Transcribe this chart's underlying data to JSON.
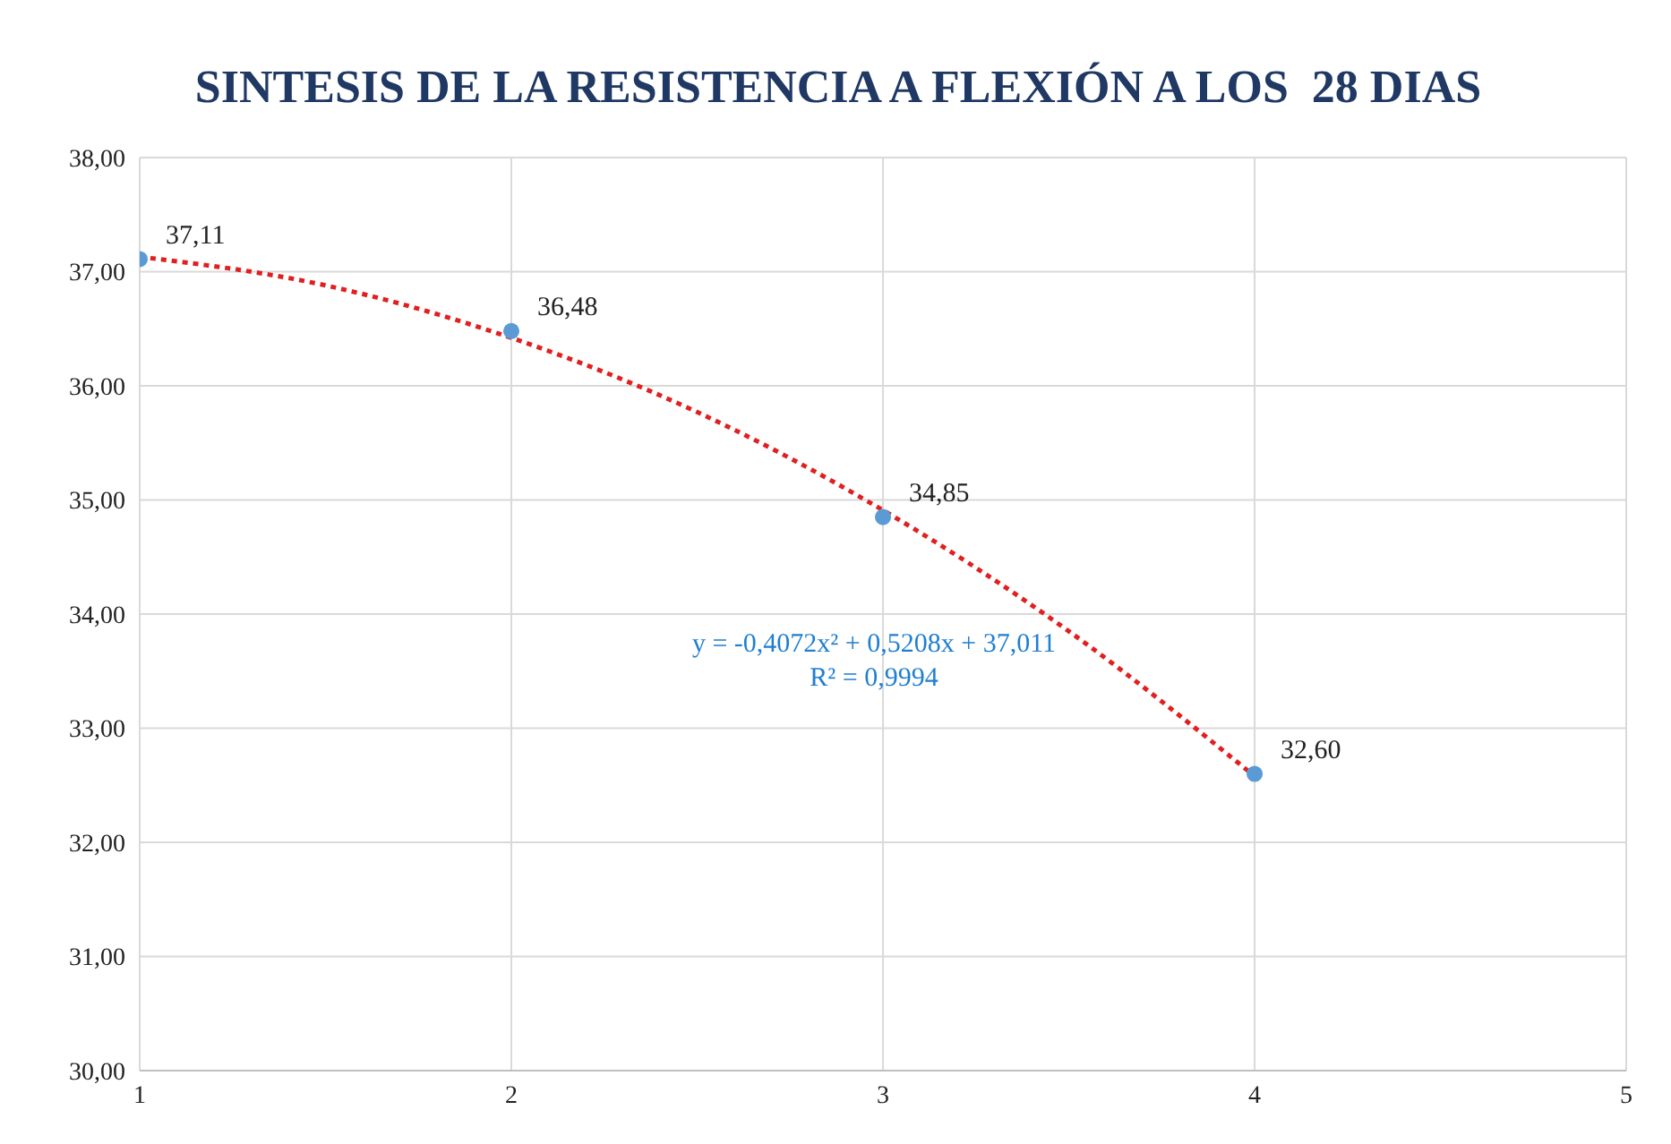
{
  "chart_data": {
    "type": "scatter",
    "title": "SINTESIS DE LA RESISTENCIA A FLEXIÓN A LOS  28 DIAS",
    "series": [
      {
        "color": "#5b9bd5",
        "x": [
          1,
          2,
          3,
          4
        ],
        "values": [
          37.11,
          36.48,
          34.85,
          32.6
        ],
        "value_labels": [
          "37,11",
          "36,48",
          "34,85",
          "32,60"
        ],
        "marker": "circle"
      },
      {
        "type": "line",
        "color": "#e02020",
        "x": [
          1,
          1.5,
          2,
          2.5,
          3,
          3.5,
          4
        ],
        "values": [
          37.13,
          36.88,
          36.42,
          35.77,
          34.91,
          33.85,
          32.58
        ],
        "line_style": "dotted",
        "marker": "none"
      }
    ],
    "annotations": [
      "y = -0,4072x² + 0,5208x + 37,011",
      "R² = 0,9994"
    ],
    "xlim": [
      1,
      5
    ],
    "xticks": [
      1,
      2,
      3,
      4,
      5
    ],
    "ylim": [
      30,
      38
    ],
    "yticks": [
      {
        "value": 30,
        "label": "30,00"
      },
      {
        "value": 31,
        "label": "31,00"
      },
      {
        "value": 32,
        "label": "32,00"
      },
      {
        "value": 33,
        "label": "33,00"
      },
      {
        "value": 34,
        "label": "34,00"
      },
      {
        "value": 35,
        "label": "35,00"
      },
      {
        "value": 36,
        "label": "36,00"
      },
      {
        "value": 37,
        "label": "37,00"
      },
      {
        "value": 38,
        "label": "38,00"
      }
    ],
    "grid": true,
    "legend": false
  }
}
